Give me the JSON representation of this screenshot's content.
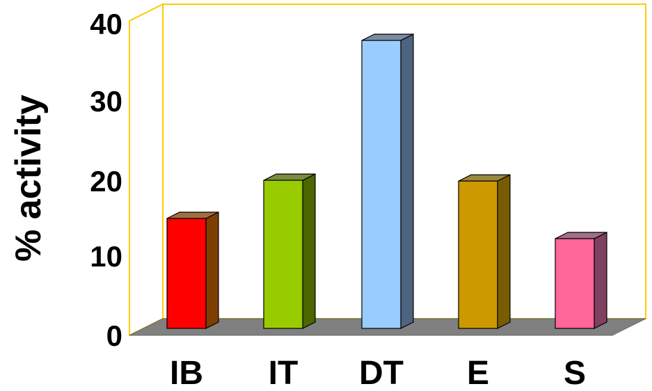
{
  "chart_data": {
    "type": "bar",
    "title": "",
    "xlabel": "",
    "ylabel": "% activity",
    "ylim": [
      0,
      40
    ],
    "yticks": [
      0,
      10,
      20,
      30,
      40
    ],
    "grid": false,
    "style": "3d",
    "categories": [
      "IB",
      "IT",
      "DT",
      "E",
      "S"
    ],
    "values": [
      14.7,
      19.8,
      38.5,
      19.7,
      12
    ],
    "colors": [
      "#ff0000",
      "#99cc00",
      "#99ccff",
      "#cc9900",
      "#ff6699"
    ],
    "side_colors": [
      "#7f3f00",
      "#4d6600",
      "#4d6480",
      "#7a5c00",
      "#804060"
    ],
    "frame_color": "#ffcc00",
    "floor_color": "#808080"
  }
}
